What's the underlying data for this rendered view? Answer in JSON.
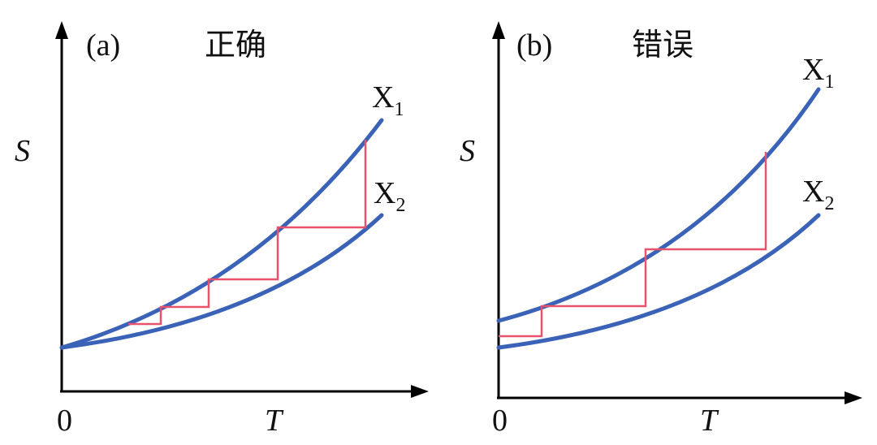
{
  "panels": [
    {
      "label": "(a)",
      "title": "正确",
      "y_axis": "S",
      "x_axis": "T",
      "origin": "0",
      "curves": [
        {
          "name": "X",
          "subscript": "1"
        },
        {
          "name": "X",
          "subscript": "2"
        }
      ]
    },
    {
      "label": "(b)",
      "title": "错误",
      "y_axis": "S",
      "x_axis": "T",
      "origin": "0",
      "curves": [
        {
          "name": "X",
          "subscript": "1"
        },
        {
          "name": "X",
          "subscript": "2"
        }
      ]
    }
  ]
}
